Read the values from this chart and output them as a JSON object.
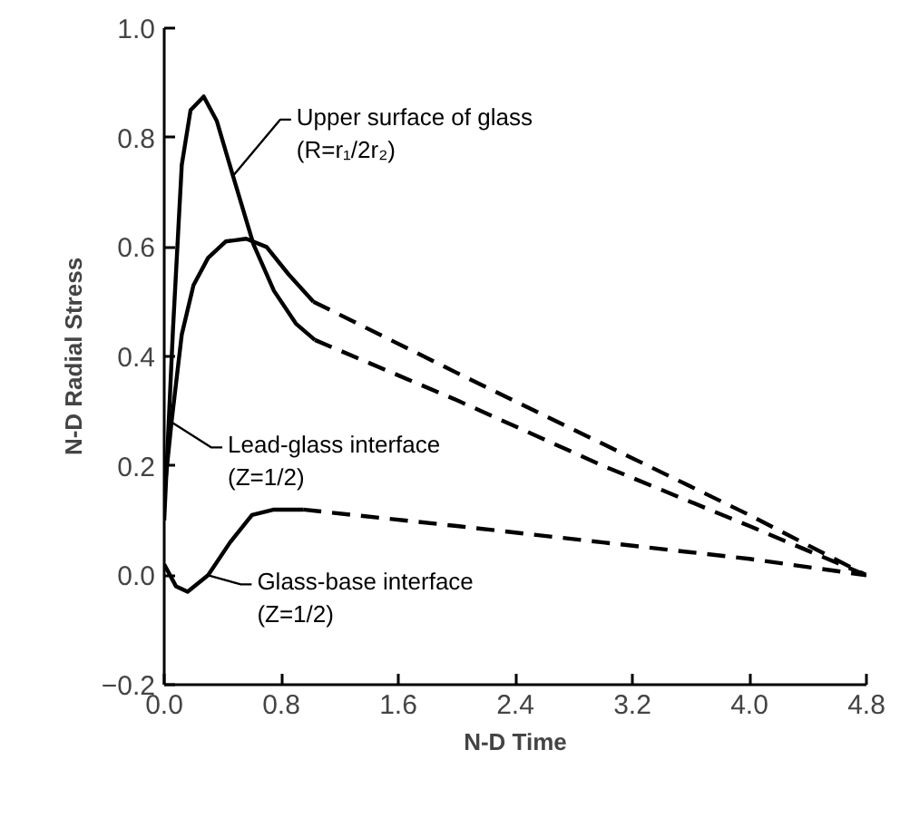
{
  "chart_data": {
    "type": "line",
    "xlabel": "N-D Time",
    "ylabel": "N-D Radial Stress",
    "xlim": [
      0,
      4.8
    ],
    "ylim": [
      -0.2,
      1.0
    ],
    "xticks": [
      {
        "value": 0,
        "label": "0.0"
      },
      0.8,
      1.6,
      2.4,
      3.2,
      {
        "value": 4,
        "label": "4.0"
      },
      4.8
    ],
    "yticks": [
      -0.2,
      {
        "value": 0,
        "label": "0.0"
      },
      0.2,
      0.4,
      0.6,
      0.8,
      {
        "value": 1,
        "label": "1.0"
      }
    ],
    "grid": false,
    "marker": "none",
    "series": [
      {
        "color": "#000000",
        "line_style": "solid",
        "x": [
          0,
          0.06,
          0.12,
          0.18,
          0.27,
          0.36,
          0.47,
          0.61,
          0.75,
          0.9,
          1.03
        ],
        "values": [
          0.1,
          0.45,
          0.75,
          0.85,
          0.875,
          0.83,
          0.73,
          0.605,
          0.52,
          0.46,
          0.43
        ]
      },
      {
        "color": "#000000",
        "line_style": "dashed",
        "x": [
          1.03,
          2.0,
          3.0,
          4.0,
          4.8
        ],
        "values": [
          0.43,
          0.32,
          0.2,
          0.09,
          0.0
        ]
      },
      {
        "color": "#000000",
        "line_style": "solid",
        "x": [
          0,
          0.05,
          0.12,
          0.2,
          0.3,
          0.42,
          0.56,
          0.7,
          0.85,
          1.02
        ],
        "values": [
          0.15,
          0.28,
          0.44,
          0.53,
          0.58,
          0.61,
          0.615,
          0.6,
          0.55,
          0.5
        ]
      },
      {
        "color": "#000000",
        "line_style": "dashed",
        "x": [
          1.02,
          2.0,
          3.0,
          4.0,
          4.8
        ],
        "values": [
          0.5,
          0.37,
          0.24,
          0.11,
          0.0
        ]
      },
      {
        "color": "#000000",
        "line_style": "solid",
        "x": [
          0,
          0.08,
          0.16,
          0.3,
          0.45,
          0.6,
          0.75,
          0.95
        ],
        "values": [
          0.02,
          -0.02,
          -0.03,
          0.0,
          0.06,
          0.11,
          0.12,
          0.12
        ]
      },
      {
        "color": "#000000",
        "line_style": "dashed",
        "x": [
          0.95,
          2.0,
          3.0,
          4.0,
          4.8
        ],
        "values": [
          0.12,
          0.09,
          0.06,
          0.03,
          0.0
        ]
      }
    ],
    "annotations": [
      {
        "text": "Upper surface of glass\n(R=r₁/2r₂)",
        "x": 0.47,
        "y": 0.73
      },
      {
        "text": "Lead-glass interface\n(Z=1/2)",
        "x": 0.05,
        "y": 0.28
      },
      {
        "text": "Glass-base interface\n(Z=1/2)",
        "x": 0.3,
        "y": 0.0
      }
    ]
  }
}
